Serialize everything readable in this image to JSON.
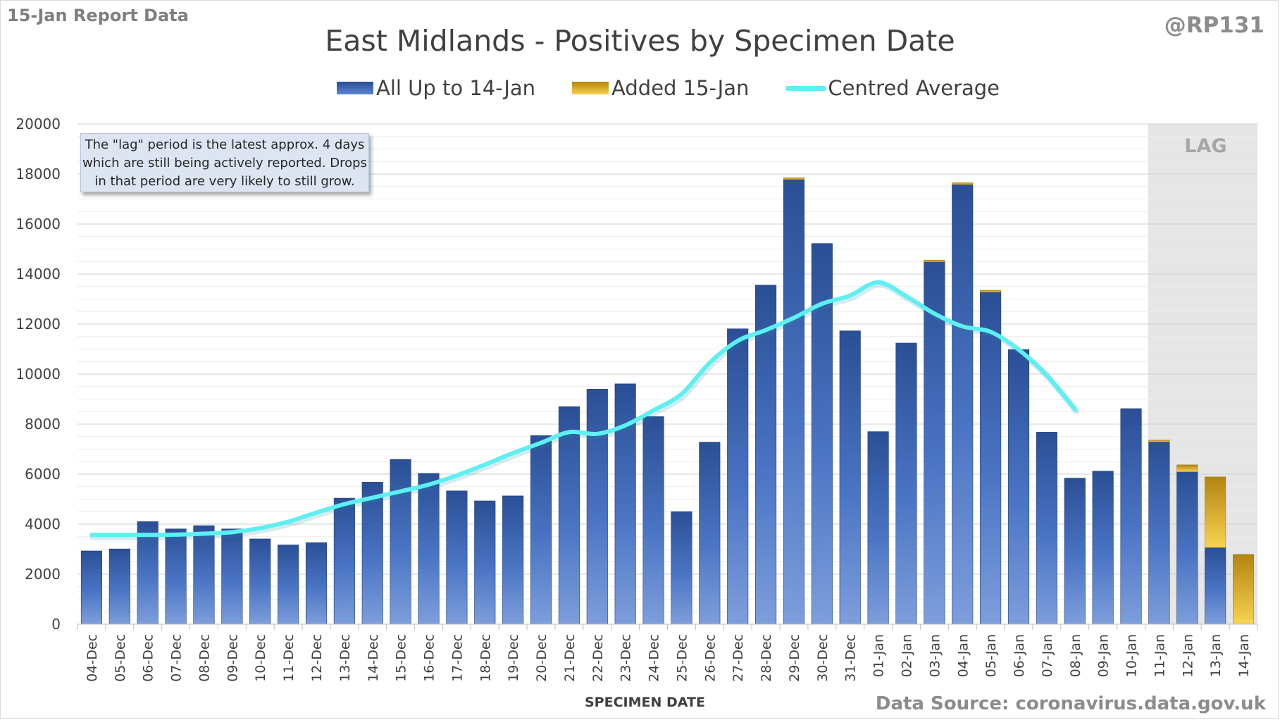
{
  "header": {
    "report_label": "15-Jan Report Data",
    "handle": "@RP131"
  },
  "footer": {
    "source": "Data Source: coronavirus.data.gov.uk"
  },
  "annotation": {
    "lines": [
      "The \"lag\" period is the latest approx. 4 days",
      "which are still being actively reported.  Drops",
      "in that period are very likely to still grow."
    ]
  },
  "lag": {
    "label": "LAG",
    "start_category": "11-Jan",
    "end_category": "14-Jan",
    "color": "#e6e6e6"
  },
  "chart_data": {
    "type": "bar",
    "title": "East Midlands - Positives by Specimen Date",
    "xlabel": "SPECIMEN DATE",
    "ylabel": "",
    "ylim": [
      0,
      20000
    ],
    "yticks": [
      0,
      2000,
      4000,
      6000,
      8000,
      10000,
      12000,
      14000,
      16000,
      18000,
      20000
    ],
    "grid": true,
    "stacked": true,
    "legend_position": "top",
    "categories": [
      "04-Dec",
      "05-Dec",
      "06-Dec",
      "07-Dec",
      "08-Dec",
      "09-Dec",
      "10-Dec",
      "11-Dec",
      "12-Dec",
      "13-Dec",
      "14-Dec",
      "15-Dec",
      "16-Dec",
      "17-Dec",
      "18-Dec",
      "19-Dec",
      "20-Dec",
      "21-Dec",
      "22-Dec",
      "23-Dec",
      "24-Dec",
      "25-Dec",
      "26-Dec",
      "27-Dec",
      "28-Dec",
      "29-Dec",
      "30-Dec",
      "31-Dec",
      "01-Jan",
      "02-Jan",
      "03-Jan",
      "04-Jan",
      "05-Jan",
      "06-Jan",
      "07-Jan",
      "08-Jan",
      "09-Jan",
      "10-Jan",
      "11-Jan",
      "12-Jan",
      "13-Jan",
      "14-Jan"
    ],
    "series": [
      {
        "name": "All Up to 14-Jan",
        "kind": "bar",
        "color": "#2e5395",
        "values": [
          2930,
          3010,
          4100,
          3810,
          3940,
          3810,
          3410,
          3170,
          3260,
          5040,
          5680,
          6590,
          6030,
          5330,
          4930,
          5130,
          7540,
          8700,
          9400,
          9610,
          8300,
          4500,
          7280,
          11810,
          13560,
          17780,
          15220,
          11730,
          7700,
          11240,
          14490,
          17580,
          13280,
          10980,
          7680,
          5840,
          6120,
          8620,
          7290,
          6090,
          3060,
          0
        ]
      },
      {
        "name": "Added 15-Jan",
        "kind": "bar",
        "color": "#e0b020",
        "values": [
          0,
          0,
          0,
          0,
          0,
          0,
          0,
          0,
          0,
          0,
          0,
          0,
          0,
          0,
          0,
          0,
          0,
          0,
          0,
          0,
          0,
          0,
          0,
          0,
          0,
          50,
          0,
          0,
          0,
          0,
          40,
          50,
          50,
          0,
          0,
          0,
          0,
          0,
          30,
          280,
          2830,
          2790
        ]
      },
      {
        "name": "Centred Average",
        "kind": "line",
        "color": "#5cf0f2",
        "values": [
          3570,
          3570,
          3570,
          3580,
          3620,
          3680,
          3840,
          4100,
          4460,
          4800,
          5060,
          5310,
          5580,
          5950,
          6380,
          6840,
          7250,
          7680,
          7610,
          7950,
          8550,
          9200,
          10450,
          11330,
          11760,
          12250,
          12810,
          13140,
          13670,
          13110,
          12420,
          11910,
          11690,
          10980,
          9950,
          8600,
          null,
          null,
          null,
          null,
          null,
          null
        ]
      }
    ]
  }
}
